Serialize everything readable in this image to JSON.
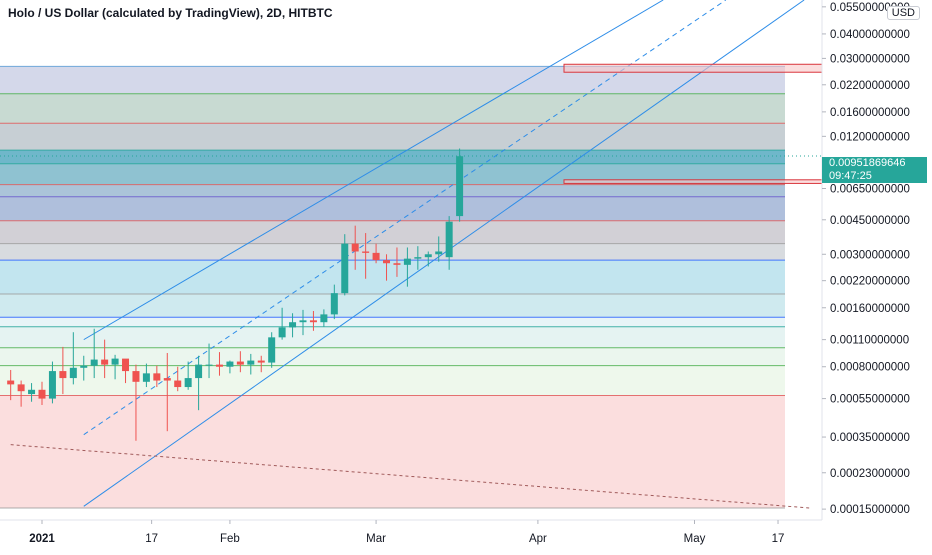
{
  "chart_data": {
    "type": "candlestick",
    "title": "Holo / US Dollar (calculated by TradingView), 2D, HITBTC",
    "currency": "USD",
    "y_scale": "log",
    "ylim": [
      0.000132,
      0.0596
    ],
    "y_ticks": [
      "0.05500000000",
      "0.04000000000",
      "0.03000000000",
      "0.02200000000",
      "0.01600000000",
      "0.01200000000",
      "0.00650000000",
      "0.00450000000",
      "0.00300000000",
      "0.00220000000",
      "0.00160000000",
      "0.00110000000",
      "0.00080000000",
      "0.00055000000",
      "0.00035000000",
      "0.00023000000",
      "0.00015000000"
    ],
    "x_ticks": [
      {
        "label": "2021",
        "date": "2020-12-27",
        "bold": true
      },
      {
        "label": "17",
        "date": "2021-01-17"
      },
      {
        "label": "Feb",
        "date": "2021-02-01"
      },
      {
        "label": "Mar",
        "date": "2021-03-01"
      },
      {
        "label": "Apr",
        "date": "2021-04-01"
      },
      {
        "label": "May",
        "date": "2021-05-01"
      },
      {
        "label": "17",
        "date": "2021-05-17"
      }
    ],
    "last_price": {
      "value": "0.00951869646",
      "countdown": "09:47:25"
    },
    "levels": [
      0.0273,
      0.0198,
      0.014,
      0.0102,
      0.0087,
      0.0068,
      0.0059,
      0.00445,
      0.0034,
      0.0028,
      0.00188,
      0.00143,
      0.00128,
      0.001,
      0.00081,
      0.00057,
      0.000152
    ],
    "zones": [
      {
        "from": 0.0198,
        "to": 0.0273,
        "color": "#c5cbe3"
      },
      {
        "from": 0.014,
        "to": 0.0198,
        "color": "#b5cec3"
      },
      {
        "from": 0.0102,
        "to": 0.014,
        "color": "#b4bfc6"
      },
      {
        "from": 0.0087,
        "to": 0.0102,
        "color": "#3f9fb8"
      },
      {
        "from": 0.0068,
        "to": 0.0087,
        "color": "#6aadc2"
      },
      {
        "from": 0.0059,
        "to": 0.0068,
        "color": "#8fb0cc"
      },
      {
        "from": 0.00445,
        "to": 0.0059,
        "color": "#94a9d0"
      },
      {
        "from": 0.0034,
        "to": 0.00445,
        "color": "#c3c0c8"
      },
      {
        "from": 0.0028,
        "to": 0.0034,
        "color": "#cbcfd4"
      },
      {
        "from": 0.00188,
        "to": 0.0028,
        "color": "#addcea"
      },
      {
        "from": 0.00143,
        "to": 0.00188,
        "color": "#bfe3ea"
      },
      {
        "from": 0.00128,
        "to": 0.00143,
        "color": "#dff0f4"
      },
      {
        "from": 0.001,
        "to": 0.00128,
        "color": "#dcefee"
      },
      {
        "from": 0.00081,
        "to": 0.001,
        "color": "#e4f3e8"
      },
      {
        "from": 0.00057,
        "to": 0.00081,
        "color": "#e8f5e6"
      },
      {
        "from": 0.000152,
        "to": 0.00057,
        "color": "#f9d3d3"
      }
    ],
    "candles": [
      {
        "date": "2020-12-21",
        "o": 0.00068,
        "h": 0.00077,
        "l": 0.00054,
        "c": 0.00065
      },
      {
        "date": "2020-12-23",
        "o": 0.00065,
        "h": 0.00068,
        "l": 0.0005,
        "c": 0.0006
      },
      {
        "date": "2020-12-25",
        "o": 0.00058,
        "h": 0.00066,
        "l": 0.00053,
        "c": 0.00061
      },
      {
        "date": "2020-12-27",
        "o": 0.00061,
        "h": 0.00067,
        "l": 0.00051,
        "c": 0.00055
      },
      {
        "date": "2020-12-29",
        "o": 0.00055,
        "h": 0.00085,
        "l": 0.00052,
        "c": 0.00076
      },
      {
        "date": "2020-12-31",
        "o": 0.00076,
        "h": 0.00101,
        "l": 0.00058,
        "c": 0.0007
      },
      {
        "date": "2021-01-02",
        "o": 0.0007,
        "h": 0.0012,
        "l": 0.00065,
        "c": 0.00079
      },
      {
        "date": "2021-01-04",
        "o": 0.00079,
        "h": 0.00091,
        "l": 0.00068,
        "c": 0.00081
      },
      {
        "date": "2021-01-06",
        "o": 0.00081,
        "h": 0.00125,
        "l": 0.0007,
        "c": 0.00087
      },
      {
        "date": "2021-01-08",
        "o": 0.00087,
        "h": 0.0011,
        "l": 0.0007,
        "c": 0.00082
      },
      {
        "date": "2021-01-10",
        "o": 0.00082,
        "h": 0.00092,
        "l": 0.00069,
        "c": 0.00088
      },
      {
        "date": "2021-01-12",
        "o": 0.00088,
        "h": 0.00086,
        "l": 0.00066,
        "c": 0.00076
      },
      {
        "date": "2021-01-14",
        "o": 0.00076,
        "h": 0.00082,
        "l": 0.000335,
        "c": 0.00067
      },
      {
        "date": "2021-01-16",
        "o": 0.00067,
        "h": 0.00083,
        "l": 0.00063,
        "c": 0.00074
      },
      {
        "date": "2021-01-18",
        "o": 0.00074,
        "h": 0.00081,
        "l": 0.00063,
        "c": 0.00068
      },
      {
        "date": "2021-01-20",
        "o": 0.0007,
        "h": 0.00094,
        "l": 0.000375,
        "c": 0.00068
      },
      {
        "date": "2021-01-22",
        "o": 0.00068,
        "h": 0.0008,
        "l": 0.0006,
        "c": 0.00063
      },
      {
        "date": "2021-01-24",
        "o": 0.00063,
        "h": 0.00085,
        "l": 0.00061,
        "c": 0.0007
      },
      {
        "date": "2021-01-26",
        "o": 0.0007,
        "h": 0.00091,
        "l": 0.00048,
        "c": 0.00082
      },
      {
        "date": "2021-01-28",
        "o": 0.00082,
        "h": 0.00105,
        "l": 0.0007,
        "c": 0.00082
      },
      {
        "date": "2021-01-30",
        "o": 0.00082,
        "h": 0.00095,
        "l": 0.00072,
        "c": 0.0008
      },
      {
        "date": "2021-02-01",
        "o": 0.0008,
        "h": 0.00086,
        "l": 0.00074,
        "c": 0.00085
      },
      {
        "date": "2021-02-03",
        "o": 0.00085,
        "h": 0.00096,
        "l": 0.00075,
        "c": 0.00082
      },
      {
        "date": "2021-02-05",
        "o": 0.00082,
        "h": 0.00093,
        "l": 0.00073,
        "c": 0.00086
      },
      {
        "date": "2021-02-07",
        "o": 0.00086,
        "h": 0.00091,
        "l": 0.00075,
        "c": 0.00084
      },
      {
        "date": "2021-02-09",
        "o": 0.00084,
        "h": 0.0012,
        "l": 0.00079,
        "c": 0.00113
      },
      {
        "date": "2021-02-11",
        "o": 0.00113,
        "h": 0.0016,
        "l": 0.0011,
        "c": 0.00127
      },
      {
        "date": "2021-02-13",
        "o": 0.00127,
        "h": 0.0015,
        "l": 0.00113,
        "c": 0.00135
      },
      {
        "date": "2021-02-15",
        "o": 0.00135,
        "h": 0.00156,
        "l": 0.00116,
        "c": 0.00138
      },
      {
        "date": "2021-02-17",
        "o": 0.00138,
        "h": 0.00154,
        "l": 0.00122,
        "c": 0.00135
      },
      {
        "date": "2021-02-19",
        "o": 0.00135,
        "h": 0.00157,
        "l": 0.00128,
        "c": 0.00148
      },
      {
        "date": "2021-02-21",
        "o": 0.00148,
        "h": 0.0021,
        "l": 0.0014,
        "c": 0.0019
      },
      {
        "date": "2021-02-23",
        "o": 0.0019,
        "h": 0.0038,
        "l": 0.00185,
        "c": 0.0034
      },
      {
        "date": "2021-02-25",
        "o": 0.0034,
        "h": 0.0042,
        "l": 0.0025,
        "c": 0.0031
      },
      {
        "date": "2021-02-27",
        "o": 0.0031,
        "h": 0.00385,
        "l": 0.00225,
        "c": 0.00305
      },
      {
        "date": "2021-03-01",
        "o": 0.00305,
        "h": 0.0034,
        "l": 0.0027,
        "c": 0.0028
      },
      {
        "date": "2021-03-03",
        "o": 0.0028,
        "h": 0.003,
        "l": 0.0022,
        "c": 0.0027
      },
      {
        "date": "2021-03-05",
        "o": 0.0027,
        "h": 0.00325,
        "l": 0.0023,
        "c": 0.00265
      },
      {
        "date": "2021-03-07",
        "o": 0.00265,
        "h": 0.00325,
        "l": 0.00205,
        "c": 0.00285
      },
      {
        "date": "2021-03-09",
        "o": 0.00285,
        "h": 0.0033,
        "l": 0.0025,
        "c": 0.0029
      },
      {
        "date": "2021-03-11",
        "o": 0.0029,
        "h": 0.0031,
        "l": 0.0026,
        "c": 0.003
      },
      {
        "date": "2021-03-13",
        "o": 0.003,
        "h": 0.0037,
        "l": 0.00275,
        "c": 0.0031
      },
      {
        "date": "2021-03-15",
        "o": 0.0029,
        "h": 0.0047,
        "l": 0.0025,
        "c": 0.0044
      },
      {
        "date": "2021-03-17",
        "o": 0.0047,
        "h": 0.0104,
        "l": 0.0044,
        "c": 0.0095
      }
    ],
    "trend_lines": [
      {
        "style": "solid",
        "from": {
          "date": "2021-01-04",
          "value": 0.0011
        },
        "to": {
          "date": "2021-04-25",
          "value": 0.0596
        }
      },
      {
        "style": "dashed",
        "from": {
          "date": "2021-01-04",
          "value": 0.00036
        },
        "to": {
          "date": "2021-05-07",
          "value": 0.0596
        }
      },
      {
        "style": "solid",
        "from": {
          "date": "2021-01-04",
          "value": 0.000155
        },
        "to": {
          "date": "2021-05-22",
          "value": 0.0596
        }
      },
      {
        "style": "dashed",
        "from": {
          "date": "2020-12-21",
          "value": 0.00032
        },
        "to": {
          "date": "2021-05-23",
          "value": 0.000152
        }
      }
    ],
    "highlight_boxes": [
      {
        "from_date": "2021-04-06",
        "to_date": "2021-05-26",
        "from": 0.0255,
        "to": 0.028
      },
      {
        "from_date": "2021-04-06",
        "to_date": "2021-05-26",
        "from": 0.0069,
        "to": 0.0072
      }
    ]
  }
}
